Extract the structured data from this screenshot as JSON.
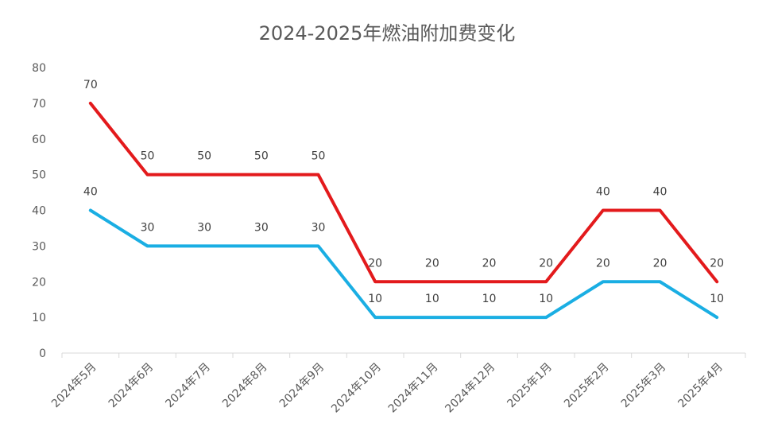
{
  "chart_data": {
    "type": "line",
    "title": "2024-2025年燃油附加费变化",
    "categories": [
      "2024年5月",
      "2024年6月",
      "2024年7月",
      "2024年8月",
      "2024年9月",
      "2024年10月",
      "2024年11月",
      "2024年12月",
      "2025年1月",
      "2025年2月",
      "2025年3月",
      "2025年4月"
    ],
    "series": [
      {
        "values": [
          70,
          50,
          50,
          50,
          50,
          20,
          20,
          20,
          20,
          40,
          40,
          20
        ],
        "color": "#e31a1c"
      },
      {
        "values": [
          40,
          30,
          30,
          30,
          30,
          10,
          10,
          10,
          10,
          20,
          20,
          10
        ],
        "color": "#1aaee3"
      }
    ],
    "ylim": [
      0,
      80
    ],
    "yticks": [
      0,
      10,
      20,
      30,
      40,
      50,
      60,
      70,
      80
    ],
    "grid": false,
    "legend": "none",
    "data_labels": true,
    "axis_color": "#d9d9d9"
  }
}
